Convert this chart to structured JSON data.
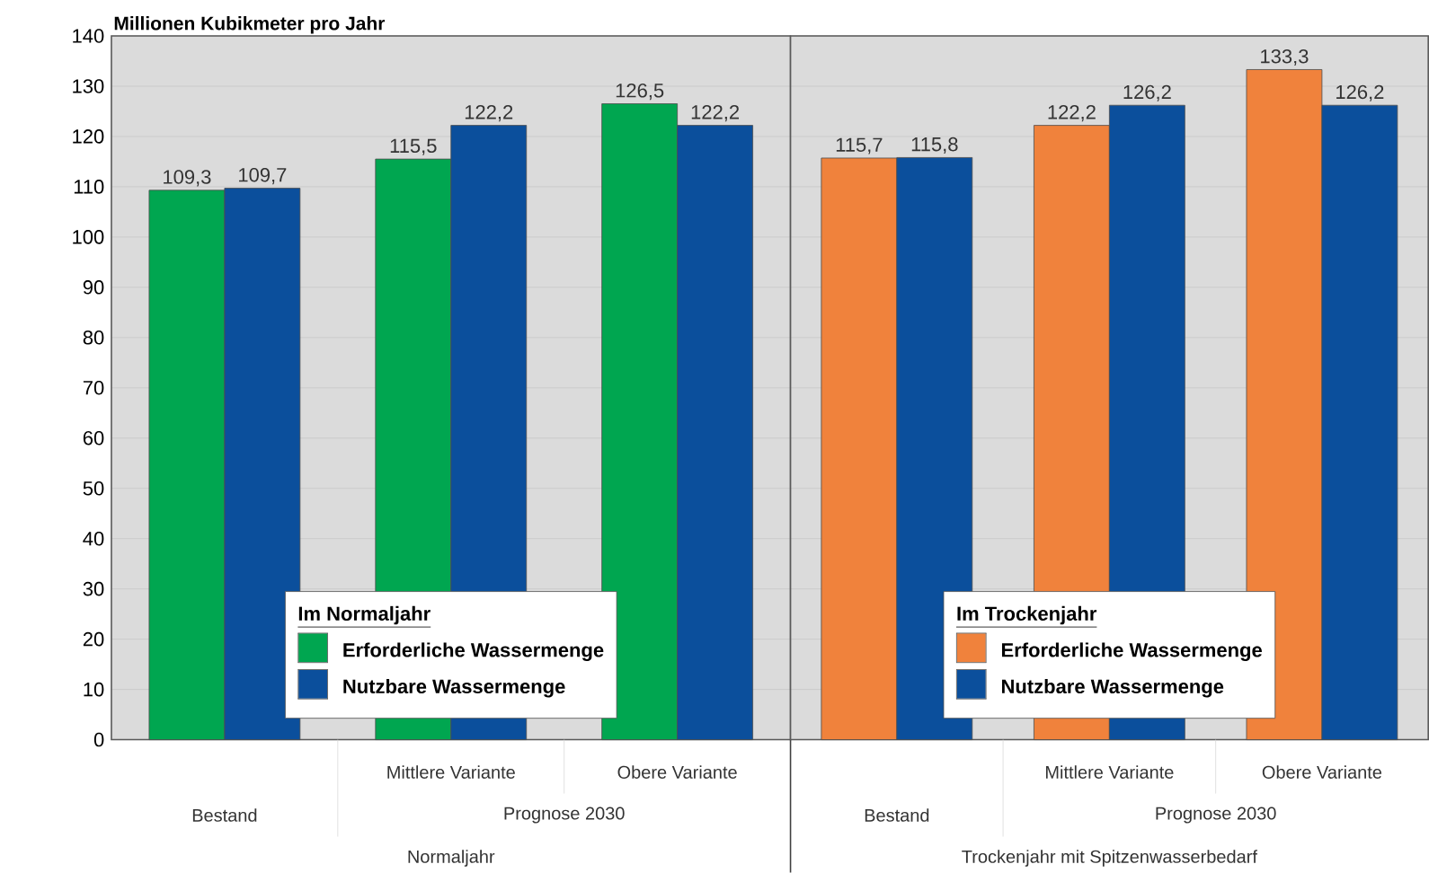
{
  "chart_data": [
    {
      "type": "bar",
      "ylabel": "Millionen Kubikmeter pro Jahr",
      "categories": [
        null,
        "Mittlere Variante",
        "Obere Variante"
      ],
      "annotations": [
        "Bestand",
        "Prognose 2030",
        "Normaljahr"
      ],
      "legend_title": "Im Normaljahr",
      "series": [
        {
          "name": "Erforderliche Wassermenge",
          "color": "#00a650",
          "values": [
            109.3,
            115.5,
            126.5
          ],
          "value_labels": [
            "109,3",
            "115,5",
            "126,5"
          ]
        },
        {
          "name": "Nutzbare Wassermenge",
          "color": "#0b4f9c",
          "values": [
            109.7,
            122.2,
            122.2
          ],
          "value_labels": [
            "109,7",
            "122,2",
            "122,2"
          ]
        }
      ],
      "ylim": [
        0,
        140
      ],
      "yticks": [
        0,
        10,
        20,
        30,
        40,
        50,
        60,
        70,
        80,
        90,
        100,
        110,
        120,
        130,
        140
      ],
      "grid": "y",
      "legend": "bottom"
    },
    {
      "type": "bar",
      "categories": [
        null,
        "Mittlere Variante",
        "Obere Variante"
      ],
      "annotations": [
        "Bestand",
        "Prognose 2030",
        "Trockenjahr mit Spitzenwasserbedarf"
      ],
      "legend_title": "Im Trockenjahr",
      "series": [
        {
          "name": "Erforderliche Wassermenge",
          "color": "#f0823c",
          "values": [
            115.7,
            122.2,
            133.3
          ],
          "value_labels": [
            "115,7",
            "122,2",
            "133,3"
          ]
        },
        {
          "name": "Nutzbare Wassermenge",
          "color": "#0b4f9c",
          "values": [
            115.8,
            126.2,
            126.2
          ],
          "value_labels": [
            "115,8",
            "126,2",
            "126,2"
          ]
        }
      ],
      "ylim": [
        0,
        140
      ],
      "yticks": [
        0,
        10,
        20,
        30,
        40,
        50,
        60,
        70,
        80,
        90,
        100,
        110,
        120,
        130,
        140
      ],
      "grid": "y",
      "legend": "bottom",
      "tick_labels": "x"
    }
  ]
}
